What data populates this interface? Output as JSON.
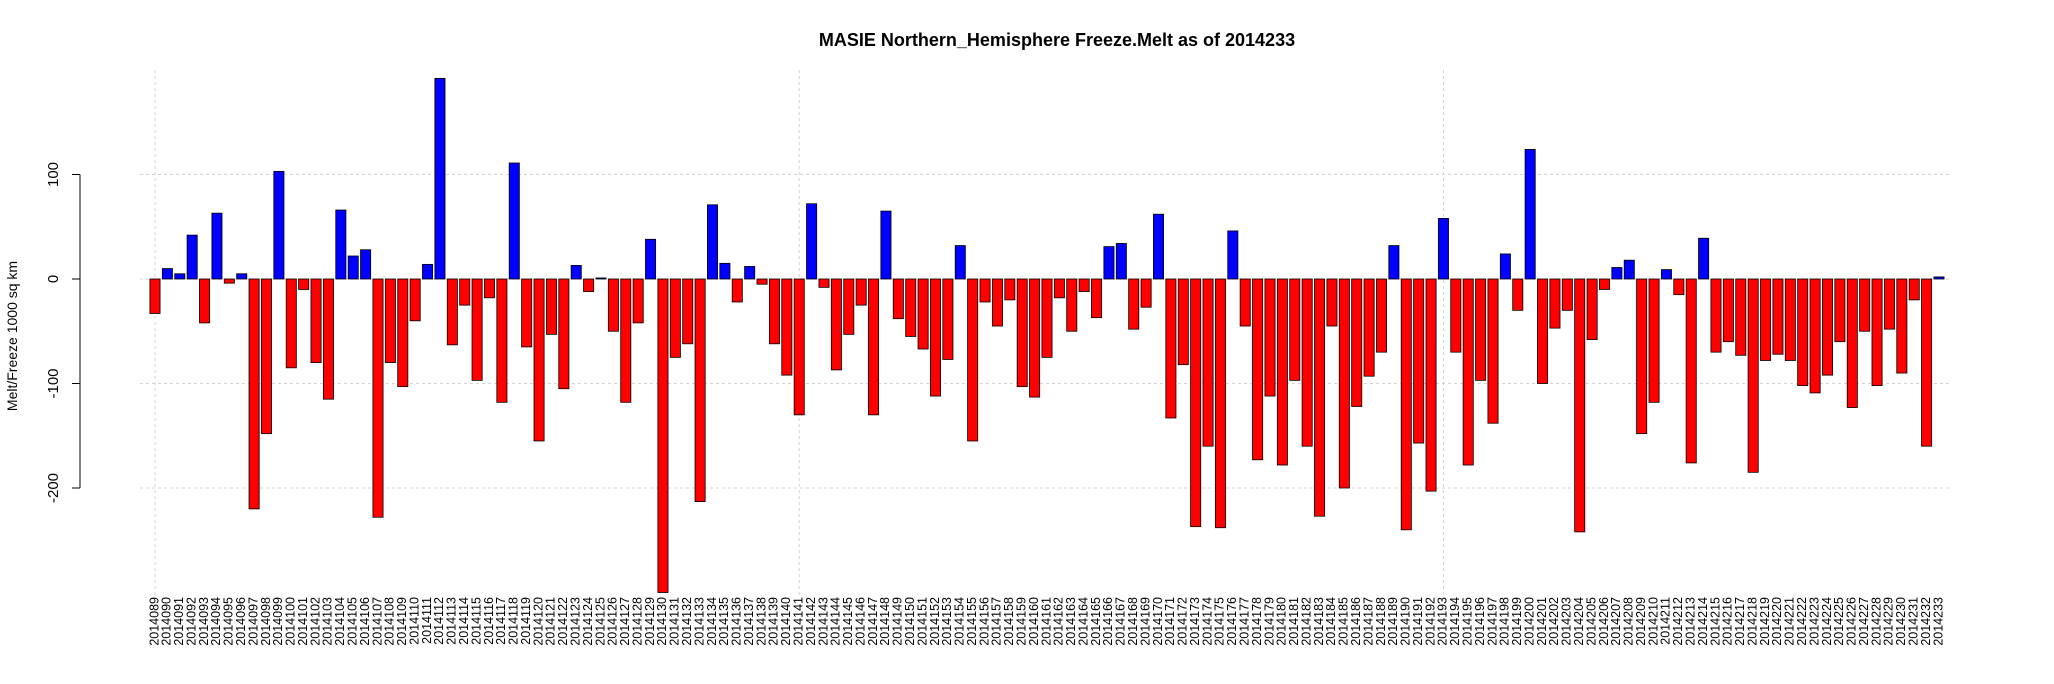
{
  "chart_data": {
    "type": "bar",
    "title": "MASIE Northern_Hemisphere Freeze.Melt as of 2014233",
    "ylabel": "Melt/Freeze 1000 sq km",
    "xlabel": "",
    "ylim": [
      -300,
      195
    ],
    "yticks": [
      -200,
      -100,
      0,
      100
    ],
    "grid": true,
    "colors": {
      "positive": "#0000ff",
      "negative": "#ff0000"
    },
    "categories": [
      "2014089",
      "2014090",
      "2014091",
      "2014092",
      "2014093",
      "2014094",
      "2014095",
      "2014096",
      "2014097",
      "2014098",
      "2014099",
      "2014100",
      "2014101",
      "2014102",
      "2014103",
      "2014104",
      "2014105",
      "2014106",
      "2014107",
      "2014108",
      "2014109",
      "2014110",
      "2014111",
      "2014112",
      "2014113",
      "2014114",
      "2014115",
      "2014116",
      "2014117",
      "2014118",
      "2014119",
      "2014120",
      "2014121",
      "2014122",
      "2014123",
      "2014124",
      "2014125",
      "2014126",
      "2014127",
      "2014128",
      "2014129",
      "2014130",
      "2014131",
      "2014132",
      "2014133",
      "2014134",
      "2014135",
      "2014136",
      "2014137",
      "2014138",
      "2014139",
      "2014140",
      "2014141",
      "2014142",
      "2014143",
      "2014144",
      "2014145",
      "2014146",
      "2014147",
      "2014148",
      "2014149",
      "2014150",
      "2014151",
      "2014152",
      "2014153",
      "2014154",
      "2014155",
      "2014156",
      "2014157",
      "2014158",
      "2014159",
      "2014160",
      "2014161",
      "2014162",
      "2014163",
      "2014164",
      "2014165",
      "2014166",
      "2014167",
      "2014168",
      "2014169",
      "2014170",
      "2014171",
      "2014172",
      "2014173",
      "2014174",
      "2014175",
      "2014176",
      "2014177",
      "2014178",
      "2014179",
      "2014180",
      "2014181",
      "2014182",
      "2014183",
      "2014184",
      "2014185",
      "2014186",
      "2014187",
      "2014188",
      "2014189",
      "2014190",
      "2014191",
      "2014192",
      "2014193",
      "2014194",
      "2014195",
      "2014196",
      "2014197",
      "2014198",
      "2014199",
      "2014200",
      "2014201",
      "2014202",
      "2014203",
      "2014204",
      "2014205",
      "2014206",
      "2014207",
      "2014208",
      "2014209",
      "2014210",
      "2014211",
      "2014212",
      "2014213",
      "2014214",
      "2014215",
      "2014216",
      "2014217",
      "2014218",
      "2014219",
      "2014220",
      "2014221",
      "2014222",
      "2014223",
      "2014224",
      "2014225",
      "2014226",
      "2014227",
      "2014228",
      "2014229",
      "2014230",
      "2014231",
      "2014232",
      "2014233"
    ],
    "values": [
      -33,
      10,
      5,
      42,
      -42,
      63,
      -4,
      5,
      -220,
      -148,
      103,
      -85,
      -10,
      -80,
      -115,
      66,
      22,
      28,
      -228,
      -80,
      -103,
      -40,
      14,
      192,
      -63,
      -25,
      -97,
      -18,
      -118,
      111,
      -65,
      -155,
      -53,
      -105,
      13,
      -12,
      1,
      -50,
      -118,
      -42,
      38,
      -300,
      -75,
      -62,
      -213,
      71,
      15,
      -22,
      12,
      -5,
      -62,
      -92,
      -130,
      72,
      -8,
      -87,
      -53,
      -25,
      -130,
      65,
      -38,
      -55,
      -67,
      -112,
      -77,
      32,
      -155,
      -22,
      -45,
      -20,
      -103,
      -113,
      -75,
      -18,
      -50,
      -12,
      -37,
      31,
      34,
      -48,
      -27,
      62,
      -133,
      -82,
      -237,
      -160,
      -238,
      46,
      -45,
      -173,
      -112,
      -178,
      -97,
      -160,
      -227,
      -45,
      -200,
      -122,
      -93,
      -70,
      32,
      -240,
      -157,
      -203,
      58,
      -70,
      -178,
      -97,
      -138,
      24,
      -30,
      124,
      -100,
      -47,
      -30,
      -242,
      -58,
      -10,
      11,
      18,
      -148,
      -118,
      9,
      -15,
      -176,
      39,
      -70,
      -60,
      -73,
      -185,
      -78,
      -72,
      -78,
      -102,
      -109,
      -92,
      -60,
      -123,
      -50,
      -102,
      -48,
      -90,
      -20,
      -160,
      2
    ]
  }
}
